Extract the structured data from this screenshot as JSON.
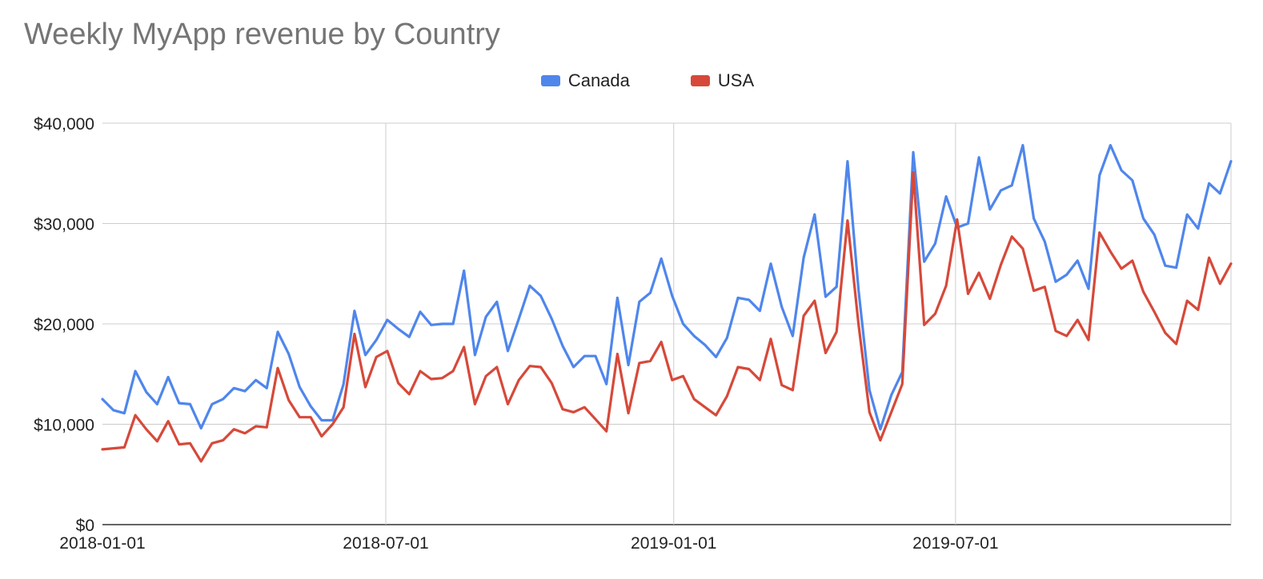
{
  "chart_data": {
    "type": "line",
    "title": "Weekly MyApp revenue by Country",
    "xlabel": "",
    "ylabel": "",
    "ylim": [
      0,
      40000
    ],
    "yticks": [
      {
        "value": 0,
        "label": "$0"
      },
      {
        "value": 10000,
        "label": "$10,000"
      },
      {
        "value": 20000,
        "label": "$20,000"
      },
      {
        "value": 30000,
        "label": "$30,000"
      },
      {
        "value": 40000,
        "label": "$40,000"
      }
    ],
    "x_start": "2018-01-01",
    "x_interval": "weekly",
    "xticks": [
      {
        "label": "2018-01-01",
        "index": 0
      },
      {
        "label": "2018-07-01",
        "index": 25.86
      },
      {
        "label": "2019-01-01",
        "index": 52.14
      },
      {
        "label": "2019-07-01",
        "index": 77.86
      }
    ],
    "grid": true,
    "legend_position": "top",
    "series": [
      {
        "name": "Canada",
        "color": "#4f86ec",
        "values": [
          12500,
          11400,
          11100,
          15300,
          13200,
          12000,
          14700,
          12100,
          12000,
          9600,
          12000,
          12500,
          13600,
          13300,
          14400,
          13600,
          19200,
          17000,
          13700,
          11800,
          10400,
          10400,
          14000,
          21300,
          16900,
          18400,
          20400,
          19500,
          18700,
          21200,
          19900,
          20000,
          20000,
          25300,
          16900,
          20700,
          22200,
          17300,
          20500,
          23800,
          22800,
          20500,
          17800,
          15700,
          16800,
          16800,
          14000,
          22600,
          15900,
          22200,
          23100,
          26500,
          22800,
          20000,
          18800,
          17900,
          16700,
          18600,
          22600,
          22400,
          21300,
          26000,
          21700,
          18800,
          26600,
          30900,
          22700,
          23700,
          36200,
          23400,
          13400,
          9500,
          12900,
          15200,
          37100,
          26200,
          28000,
          32700,
          29600,
          30000,
          36600,
          31400,
          33300,
          33800,
          37800,
          30500,
          28200,
          24200,
          24900,
          26300,
          23500,
          34800,
          37800,
          35300,
          34300,
          30500,
          28900,
          25800,
          25600,
          30900,
          29500,
          34000,
          33000,
          36200
        ],
        "values_note": ""
      },
      {
        "name": "USA",
        "color": "#d6493a",
        "values": [
          7500,
          7600,
          7700,
          10900,
          9500,
          8300,
          10300,
          8000,
          8100,
          6300,
          8100,
          8400,
          9500,
          9100,
          9800,
          9700,
          15600,
          12400,
          10700,
          10700,
          8800,
          10000,
          11700,
          19000,
          13700,
          16700,
          17300,
          14100,
          13000,
          15300,
          14500,
          14600,
          15300,
          17700,
          12000,
          14800,
          15700,
          12000,
          14400,
          15800,
          15700,
          14100,
          11500,
          11200,
          11700,
          10500,
          9300,
          17000,
          11100,
          16100,
          16300,
          18200,
          14400,
          14800,
          12500,
          11700,
          10900,
          12800,
          15700,
          15500,
          14400,
          18500,
          13900,
          13400,
          20800,
          22300,
          17100,
          19200,
          30300,
          20000,
          11200,
          8400,
          11200,
          14000,
          35100,
          19900,
          21000,
          23800,
          30400,
          23000,
          25100,
          22500,
          25900,
          28700,
          27500,
          23300,
          23700,
          19300,
          18800,
          20400,
          18400,
          29100,
          27200,
          25500,
          26300,
          23200,
          21200,
          19100,
          18000,
          22300,
          21400,
          26600,
          24000,
          26000
        ]
      }
    ]
  }
}
